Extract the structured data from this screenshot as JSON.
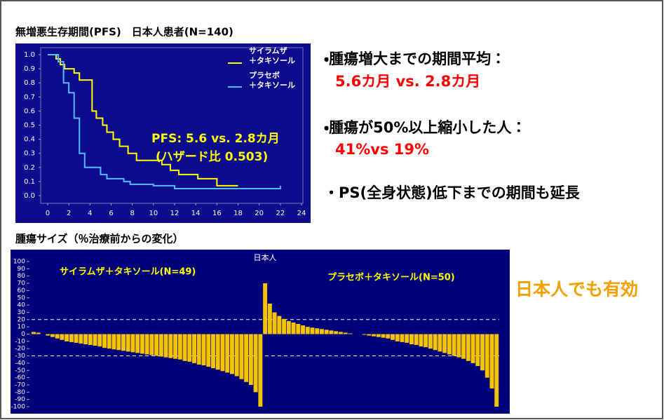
{
  "chart_data": [
    {
      "type": "line",
      "title": "無増悪生存期間(PFS)　日本人患者(N=140)",
      "annotations": [
        "PFS: 5.6 vs. 2.8カ月",
        "(ハザード比 0.503)"
      ],
      "xlim": [
        0,
        24
      ],
      "xticks": [
        0,
        2,
        4,
        6,
        8,
        10,
        12,
        14,
        16,
        18,
        20,
        22,
        24
      ],
      "ylim": [
        0,
        1
      ],
      "yticks": [
        {
          "value": 0,
          "label": "0.0"
        },
        0.1,
        0.2,
        0.3,
        0.4,
        0.5,
        0.6,
        0.7,
        0.8,
        0.9,
        {
          "value": 1,
          "label": "1.0"
        }
      ],
      "legend": "top-right",
      "series": [
        {
          "name": "サイラムザ\n＋タキソール",
          "color": "#ffff00",
          "x": [
            0,
            0.8,
            0.8,
            1.2,
            1.2,
            1.6,
            1.6,
            2.5,
            2.5,
            3.0,
            3.0,
            4.2,
            4.2,
            4.6,
            4.6,
            5.2,
            5.2,
            5.6,
            5.6,
            6.2,
            6.2,
            6.8,
            6.8,
            7.6,
            7.6,
            8.4,
            8.4,
            10.8,
            10.8,
            11.6,
            11.6,
            12.4,
            12.4,
            14.2,
            14.2,
            16.0,
            16.0,
            18.0
          ],
          "values": [
            1,
            1,
            0.97,
            0.97,
            0.93,
            0.93,
            0.9,
            0.9,
            0.87,
            0.87,
            0.82,
            0.82,
            0.6,
            0.6,
            0.55,
            0.55,
            0.5,
            0.5,
            0.45,
            0.45,
            0.4,
            0.4,
            0.35,
            0.35,
            0.3,
            0.3,
            0.25,
            0.25,
            0.22,
            0.22,
            0.18,
            0.18,
            0.15,
            0.15,
            0.12,
            0.12,
            0.07,
            0.07
          ]
        },
        {
          "name": "プラセボ\n＋タキソール",
          "color": "#55bbff",
          "x": [
            0,
            1.0,
            1.0,
            1.5,
            1.5,
            2.0,
            2.0,
            2.5,
            2.5,
            3.0,
            3.0,
            3.5,
            3.5,
            5.0,
            5.0,
            5.6,
            5.6,
            7.2,
            7.2,
            7.8,
            7.8,
            10.0,
            10.0,
            12.0,
            12.0,
            22.0,
            22.0
          ],
          "values": [
            1,
            1,
            0.95,
            0.95,
            0.8,
            0.8,
            0.73,
            0.73,
            0.55,
            0.55,
            0.3,
            0.3,
            0.2,
            0.2,
            0.15,
            0.15,
            0.12,
            0.12,
            0.1,
            0.1,
            0.08,
            0.08,
            0.07,
            0.07,
            0.05,
            0.05,
            0.07
          ]
        }
      ]
    },
    {
      "type": "bar",
      "title": "腫瘍サイズ（％治療前からの変化）",
      "subtitle": "日本人",
      "ylim": [
        -100,
        100
      ],
      "yticks": [
        -100,
        -90,
        -80,
        -70,
        -60,
        -50,
        -40,
        -30,
        -20,
        -10,
        0,
        10,
        20,
        30,
        40,
        50,
        60,
        70,
        80,
        90,
        100
      ],
      "reference_lines": [
        20,
        -30
      ],
      "series": [
        {
          "name": "サイラムザ＋タキソール(N=49)",
          "color": "#f5c400",
          "values": [
            3,
            2,
            0,
            -2,
            -4,
            -6,
            -8,
            -10,
            -11,
            -12,
            -13,
            -14,
            -15,
            -16,
            -17,
            -19,
            -20,
            -21,
            -22,
            -23,
            -24,
            -25,
            -26,
            -27,
            -28,
            -29,
            -30,
            -31,
            -32,
            -33,
            -34,
            -35,
            -37,
            -38,
            -40,
            -42,
            -43,
            -45,
            -47,
            -49,
            -51,
            -53,
            -55,
            -58,
            -62,
            -66,
            -70,
            -80,
            -100
          ]
        },
        {
          "name": "プラセボ＋タキソール(N=50)",
          "color": "#f5c400",
          "values": [
            70,
            42,
            30,
            25,
            21,
            18,
            16,
            14,
            12,
            10,
            9,
            8,
            7,
            6,
            5,
            4,
            3,
            2,
            1,
            0,
            0,
            -1,
            -2,
            -3,
            -4,
            -5,
            -6,
            -8,
            -10,
            -11,
            -12,
            -14,
            -15,
            -17,
            -18,
            -20,
            -22,
            -24,
            -26,
            -28,
            -30,
            -32,
            -34,
            -37,
            -40,
            -44,
            -50,
            -60,
            -75,
            -100
          ]
        }
      ]
    }
  ],
  "bullets": [
    {
      "heading": "・腫瘍増大までの期間平均：",
      "detail": "5.6カ月 vs. 2.8カ月"
    },
    {
      "heading": "・腫瘍が50%以上縮小した人：",
      "detail": "41%vs 19%"
    },
    {
      "heading": "・PS(全身状態)低下までの期間も延長"
    }
  ],
  "conclusion": "日本人でも有効"
}
